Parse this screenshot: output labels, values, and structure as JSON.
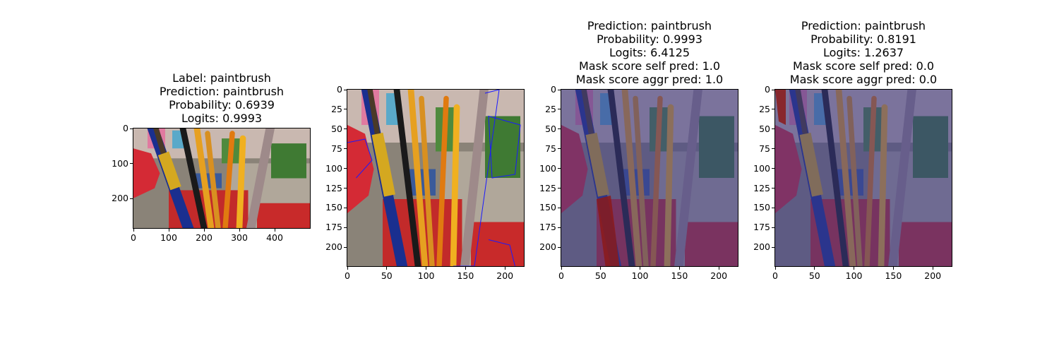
{
  "panels": [
    {
      "title_lines": [
        "Label: paintbrush",
        "Prediction: paintbrush",
        "Probability: 0.6939",
        "Logits: 0.9993"
      ],
      "overlay": "none",
      "xticks": [
        "0",
        "100",
        "200",
        "300",
        "400"
      ],
      "yticks": [
        "0",
        "100",
        "200"
      ]
    },
    {
      "title_lines": [],
      "overlay": "outline",
      "xticks": [
        "0",
        "50",
        "100",
        "150",
        "200"
      ],
      "yticks": [
        "0",
        "25",
        "50",
        "75",
        "100",
        "125",
        "150",
        "175",
        "200"
      ]
    },
    {
      "title_lines": [
        "Prediction: paintbrush",
        "Probability: 0.9993",
        "Logits: 6.4125",
        "Mask score self pred: 1.0",
        "Mask score aggr pred: 1.0"
      ],
      "overlay": "mask-brush",
      "xticks": [
        "0",
        "50",
        "100",
        "150",
        "200"
      ],
      "yticks": [
        "0",
        "25",
        "50",
        "75",
        "100",
        "125",
        "150",
        "175",
        "200"
      ]
    },
    {
      "title_lines": [
        "Prediction: paintbrush",
        "Probability: 0.8191",
        "Logits: 1.2637",
        "Mask score self pred: 0.0",
        "Mask score aggr pred: 0.0"
      ],
      "overlay": "mask-corner",
      "xticks": [
        "0",
        "50",
        "100",
        "150",
        "200"
      ],
      "yticks": [
        "0",
        "25",
        "50",
        "75",
        "100",
        "125",
        "150",
        "175",
        "200"
      ]
    }
  ],
  "colors": {
    "mask_tint": "#3a3a8c",
    "mask_highlight": "#8b1a1a",
    "outline": "#1a1aff"
  }
}
